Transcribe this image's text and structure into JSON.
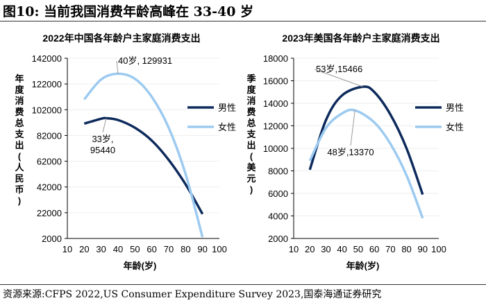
{
  "figure_title": "图10:  当前我国消费年龄高峰在 33-40 岁",
  "source": "资源来源:CFPS 2022,US Consumer Expenditure Survey 2023,国泰海通证券研究",
  "colors": {
    "male": "#0d2a5c",
    "female": "#9ccaf0"
  },
  "chart_data": [
    {
      "type": "line",
      "title": "2022年中国各年龄户主家庭消费支出",
      "xlabel": "年龄(岁)",
      "ylabel": "年度消费总支出(人民币)",
      "xlim": [
        10,
        100
      ],
      "ylim": [
        2000,
        142000
      ],
      "xticks": [
        10,
        20,
        30,
        40,
        50,
        60,
        70,
        80,
        90,
        100
      ],
      "yticks": [
        2000,
        22000,
        42000,
        62000,
        82000,
        102000,
        122000,
        142000
      ],
      "legend": "right",
      "grid": true,
      "series": [
        {
          "name": "男性",
          "color": "#0d2a5c",
          "x": [
            20,
            30,
            33,
            40,
            50,
            60,
            70,
            80,
            90
          ],
          "y": [
            91200,
            95000,
            95440,
            94000,
            88000,
            78000,
            63000,
            44000,
            21000
          ]
        },
        {
          "name": "女性",
          "color": "#9ccaf0",
          "x": [
            20,
            30,
            40,
            50,
            60,
            70,
            80,
            90
          ],
          "y": [
            110000,
            125500,
            129931,
            126000,
            112000,
            88000,
            52000,
            3000
          ]
        }
      ],
      "annotations": [
        {
          "text": "40岁, 129931",
          "x": 40,
          "y": 129931
        },
        {
          "text": "33岁,",
          "text2": "95440",
          "x": 33,
          "y": 95440
        }
      ]
    },
    {
      "type": "line",
      "title": "2023年美国各年龄户主家庭消费支出",
      "xlabel": "年龄(岁)",
      "ylabel": "季度消费总支出(美元)",
      "xlim": [
        10,
        100
      ],
      "ylim": [
        2000,
        18000
      ],
      "xticks": [
        10,
        20,
        30,
        40,
        50,
        60,
        70,
        80,
        90,
        100
      ],
      "yticks": [
        2000,
        4000,
        6000,
        8000,
        10000,
        12000,
        14000,
        16000,
        18000
      ],
      "legend": "right",
      "grid": true,
      "series": [
        {
          "name": "男性",
          "color": "#0d2a5c",
          "x": [
            20,
            30,
            40,
            53,
            60,
            70,
            80,
            90
          ],
          "y": [
            8100,
            12500,
            14700,
            15466,
            15000,
            13000,
            10000,
            5900
          ]
        },
        {
          "name": "女性",
          "color": "#9ccaf0",
          "x": [
            20,
            30,
            40,
            48,
            60,
            70,
            80,
            90
          ],
          "y": [
            8900,
            11800,
            13100,
            13370,
            12300,
            10400,
            7600,
            3800
          ]
        }
      ],
      "annotations": [
        {
          "text": "53岁,15466",
          "x": 53,
          "y": 15466
        },
        {
          "text": "48岁,13370",
          "x": 48,
          "y": 13370
        }
      ]
    }
  ]
}
